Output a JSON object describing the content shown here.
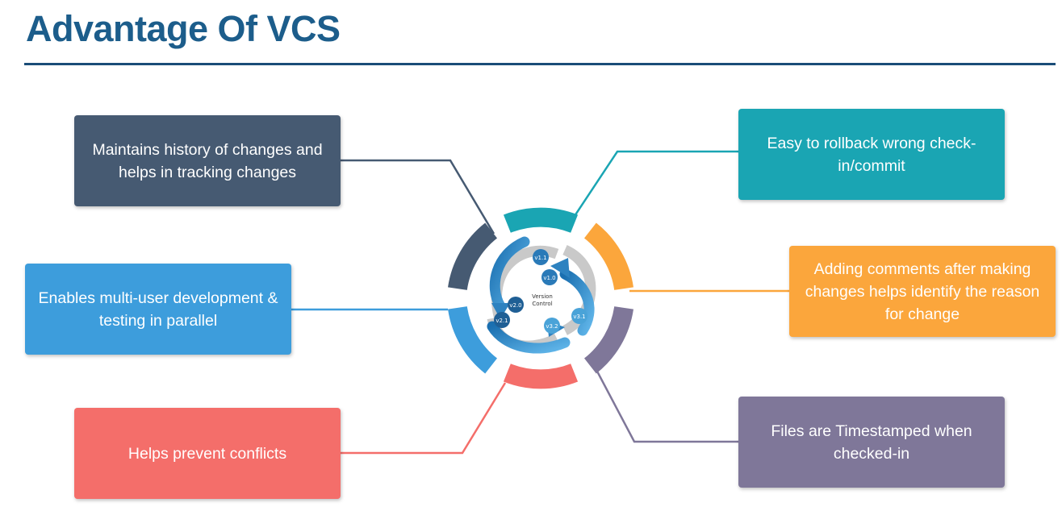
{
  "title": "Advantage Of VCS",
  "center": {
    "label_line1": "Version",
    "label_line2": "Control",
    "versions": [
      "v1.1",
      "v1.0",
      "v2.0",
      "v2.1",
      "v3.2",
      "v3.1"
    ]
  },
  "boxes": {
    "history": "Maintains history of changes and helps in tracking changes",
    "multiuser": "Enables multi-user development & testing in parallel",
    "conflicts": "Helps prevent conflicts",
    "rollback": "Easy to rollback wrong check-in/commit",
    "comments": "Adding comments after making changes helps identify the reason for change",
    "timestamp": "Files are Timestamped when checked-in"
  },
  "colors": {
    "title": "#1c5d8b",
    "history": "#465a72",
    "multiuser": "#3d9ddc",
    "conflicts": "#f46e6a",
    "rollback": "#1aa5b3",
    "comments": "#fba63c",
    "timestamp": "#7f7799"
  }
}
